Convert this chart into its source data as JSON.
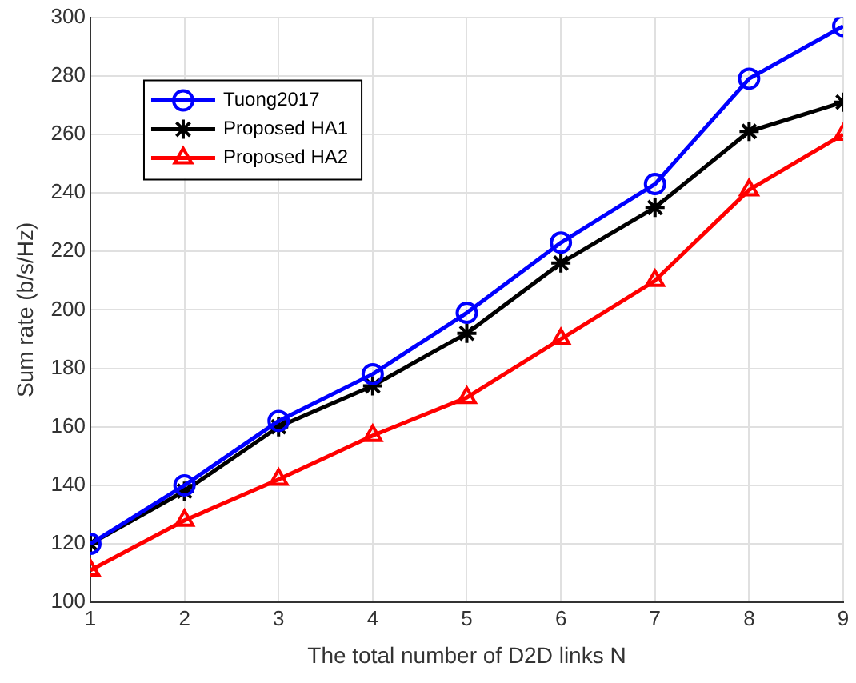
{
  "chart_data": {
    "type": "line",
    "xlabel": "The total number of D2D links N",
    "ylabel": "Sum rate (b/s/Hz)",
    "x": [
      1,
      2,
      3,
      4,
      5,
      6,
      7,
      8,
      9
    ],
    "xlim": [
      1,
      9
    ],
    "xticks": [
      1,
      2,
      3,
      4,
      5,
      6,
      7,
      8,
      9
    ],
    "ylim": [
      100,
      300
    ],
    "yticks": [
      100,
      120,
      140,
      160,
      180,
      200,
      220,
      240,
      260,
      280,
      300
    ],
    "grid": true,
    "legend": "top left",
    "line_style": "solid",
    "series": [
      {
        "name": "Tuong2017",
        "color": "#0000ff",
        "marker": "circle",
        "values": [
          120,
          140,
          162,
          178,
          199,
          223,
          243,
          279,
          297
        ]
      },
      {
        "name": "Proposed HA1",
        "color": "#000000",
        "marker": "cross",
        "values": [
          120,
          138,
          160,
          174,
          192,
          216,
          235,
          261,
          271
        ]
      },
      {
        "name": "Proposed HA2",
        "color": "#ff0000",
        "marker": "triangle",
        "values": [
          111,
          128,
          142,
          157,
          170,
          190,
          210,
          241,
          260
        ]
      }
    ]
  }
}
